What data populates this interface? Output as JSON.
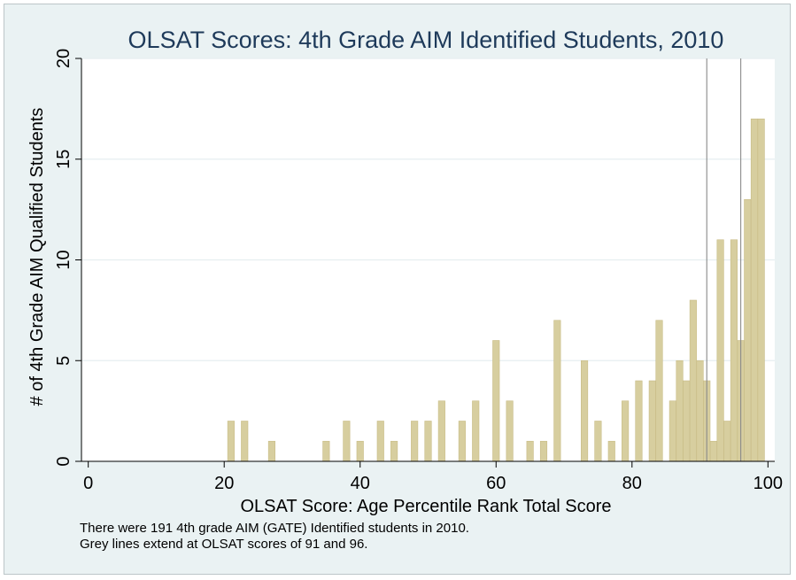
{
  "chart_data": {
    "type": "bar",
    "title": "OLSAT Scores: 4th Grade AIM Identified Students, 2010",
    "xlabel": "OLSAT Score: Age Percentile Rank Total Score",
    "ylabel": "# of 4th Grade AIM Qualified Students",
    "xlim": [
      -1,
      101
    ],
    "ylim": [
      0,
      20
    ],
    "x_ticks": [
      0,
      20,
      40,
      60,
      80,
      100
    ],
    "y_ticks": [
      0,
      5,
      10,
      15,
      20
    ],
    "grid": "horizontal",
    "bar_color": "#d7ce9f",
    "bar_edge_color": "#c8bc86",
    "ref_lines_x": [
      91,
      96
    ],
    "ref_line_color": "#8a8a8a",
    "x": [
      21,
      23,
      27,
      35,
      38,
      40,
      43,
      45,
      48,
      50,
      52,
      55,
      57,
      60,
      62,
      65,
      67,
      69,
      73,
      75,
      77,
      79,
      81,
      83,
      84,
      86,
      87,
      88,
      89,
      90,
      91,
      92,
      93,
      94,
      95,
      96,
      97,
      98,
      99
    ],
    "values": [
      2,
      2,
      1,
      1,
      2,
      1,
      2,
      1,
      2,
      2,
      3,
      2,
      3,
      6,
      3,
      1,
      1,
      7,
      5,
      2,
      1,
      3,
      4,
      4,
      7,
      3,
      5,
      4,
      8,
      5,
      4,
      1,
      11,
      2,
      11,
      6,
      13,
      17,
      17
    ]
  },
  "notes": [
    "There were 191 4th grade AIM (GATE) Identified students in 2010.",
    "Grey lines extend at OLSAT scores of 91 and 96."
  ]
}
